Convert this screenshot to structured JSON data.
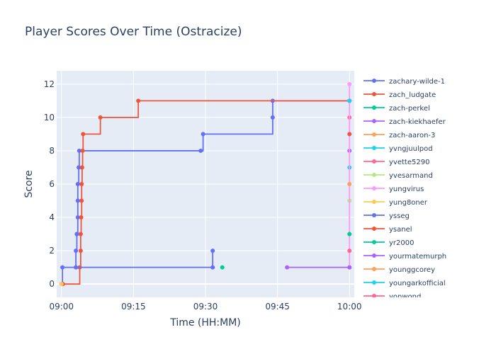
{
  "chart_data": {
    "type": "line",
    "line_shape": "step",
    "title": "Player Scores Over Time (Ostracize)",
    "xlabel": "Time (HH:MM)",
    "ylabel": "Score",
    "x_ticks": [
      "09:00",
      "09:15",
      "09:30",
      "09:45",
      "10:00"
    ],
    "y_ticks": [
      0,
      2,
      4,
      6,
      8,
      10,
      12
    ],
    "xlim": [
      "08:59",
      "10:01"
    ],
    "ylim": [
      -0.8,
      12.8
    ],
    "grid": true,
    "legend_position": "right",
    "series": [
      {
        "name": "zachary-wilde-1",
        "color": "#636efa",
        "x": [
          "09:00",
          "09:00.2",
          "09:00.2",
          "09:03",
          "09:03",
          "09:03.2",
          "09:03.2",
          "09:03.4",
          "09:03.4",
          "09:03.4",
          "09:03.6",
          "09:03.6",
          "09:03.7",
          "09:29",
          "09:29.5",
          "09:44",
          "09:44",
          "10:00"
        ],
        "y": [
          0,
          0,
          1,
          1,
          2,
          3,
          3,
          4,
          5,
          6,
          7,
          7,
          8,
          8,
          9,
          10,
          11,
          11
        ]
      },
      {
        "name": "zach_ludgate",
        "color": "#ef553b",
        "x": [
          "09:00.3",
          "09:03.8",
          "09:04",
          "09:04",
          "09:04.1",
          "09:04.2",
          "09:04.2",
          "09:04.3",
          "09:04.4",
          "09:04.5",
          "09:08.1",
          "09:16",
          "10:00"
        ],
        "y": [
          0,
          1,
          2,
          3,
          4,
          5,
          6,
          7,
          8,
          9,
          10,
          11,
          11
        ]
      },
      {
        "name": "zach-perkel",
        "color": "#00cc96",
        "x": [
          "09:33.5"
        ],
        "y": [
          1
        ]
      },
      {
        "name": "zach-kiekhaefer",
        "color": "#ab63fa",
        "x": [
          "10:00"
        ],
        "y": [
          8
        ]
      },
      {
        "name": "zach-aaron-3",
        "color": "#ffa15a",
        "x": [
          "10:00"
        ],
        "y": [
          1
        ]
      },
      {
        "name": "yvngjuulpod",
        "color": "#19d3f3",
        "x": [
          "10:00"
        ],
        "y": [
          7
        ]
      },
      {
        "name": "yvette5290",
        "color": "#ff6692",
        "x": [
          "10:00"
        ],
        "y": [
          10
        ]
      },
      {
        "name": "yvesarmand",
        "color": "#b6e880",
        "x": [
          "10:00"
        ],
        "y": [
          5
        ]
      },
      {
        "name": "yungvirus",
        "color": "#ff97ff",
        "x": [
          "10:00",
          "10:00"
        ],
        "y": [
          1,
          12
        ]
      },
      {
        "name": "yung8oner",
        "color": "#fecb52",
        "x": [
          "09:00"
        ],
        "y": [
          0
        ]
      },
      {
        "name": "ysseg",
        "color": "#636efa",
        "x": [
          "09:03",
          "09:31.5",
          "09:31.5"
        ],
        "y": [
          1,
          1,
          2
        ]
      },
      {
        "name": "ysanel",
        "color": "#ef553b",
        "x": [
          "10:00"
        ],
        "y": [
          9
        ]
      },
      {
        "name": "yr2000",
        "color": "#00cc96",
        "x": [
          "10:00"
        ],
        "y": [
          3
        ]
      },
      {
        "name": "yourmatemurph",
        "color": "#ab63fa",
        "x": [
          "09:47",
          "10:00"
        ],
        "y": [
          1,
          1
        ]
      },
      {
        "name": "younggcorey",
        "color": "#ffa15a",
        "x": [
          "10:00"
        ],
        "y": [
          6
        ]
      },
      {
        "name": "youngarkofficial",
        "color": "#19d3f3",
        "x": [
          "10:00"
        ],
        "y": [
          11
        ]
      },
      {
        "name": "yonwond",
        "color": "#ff6692",
        "x": [
          "10:00"
        ],
        "y": [
          2
        ]
      }
    ]
  }
}
